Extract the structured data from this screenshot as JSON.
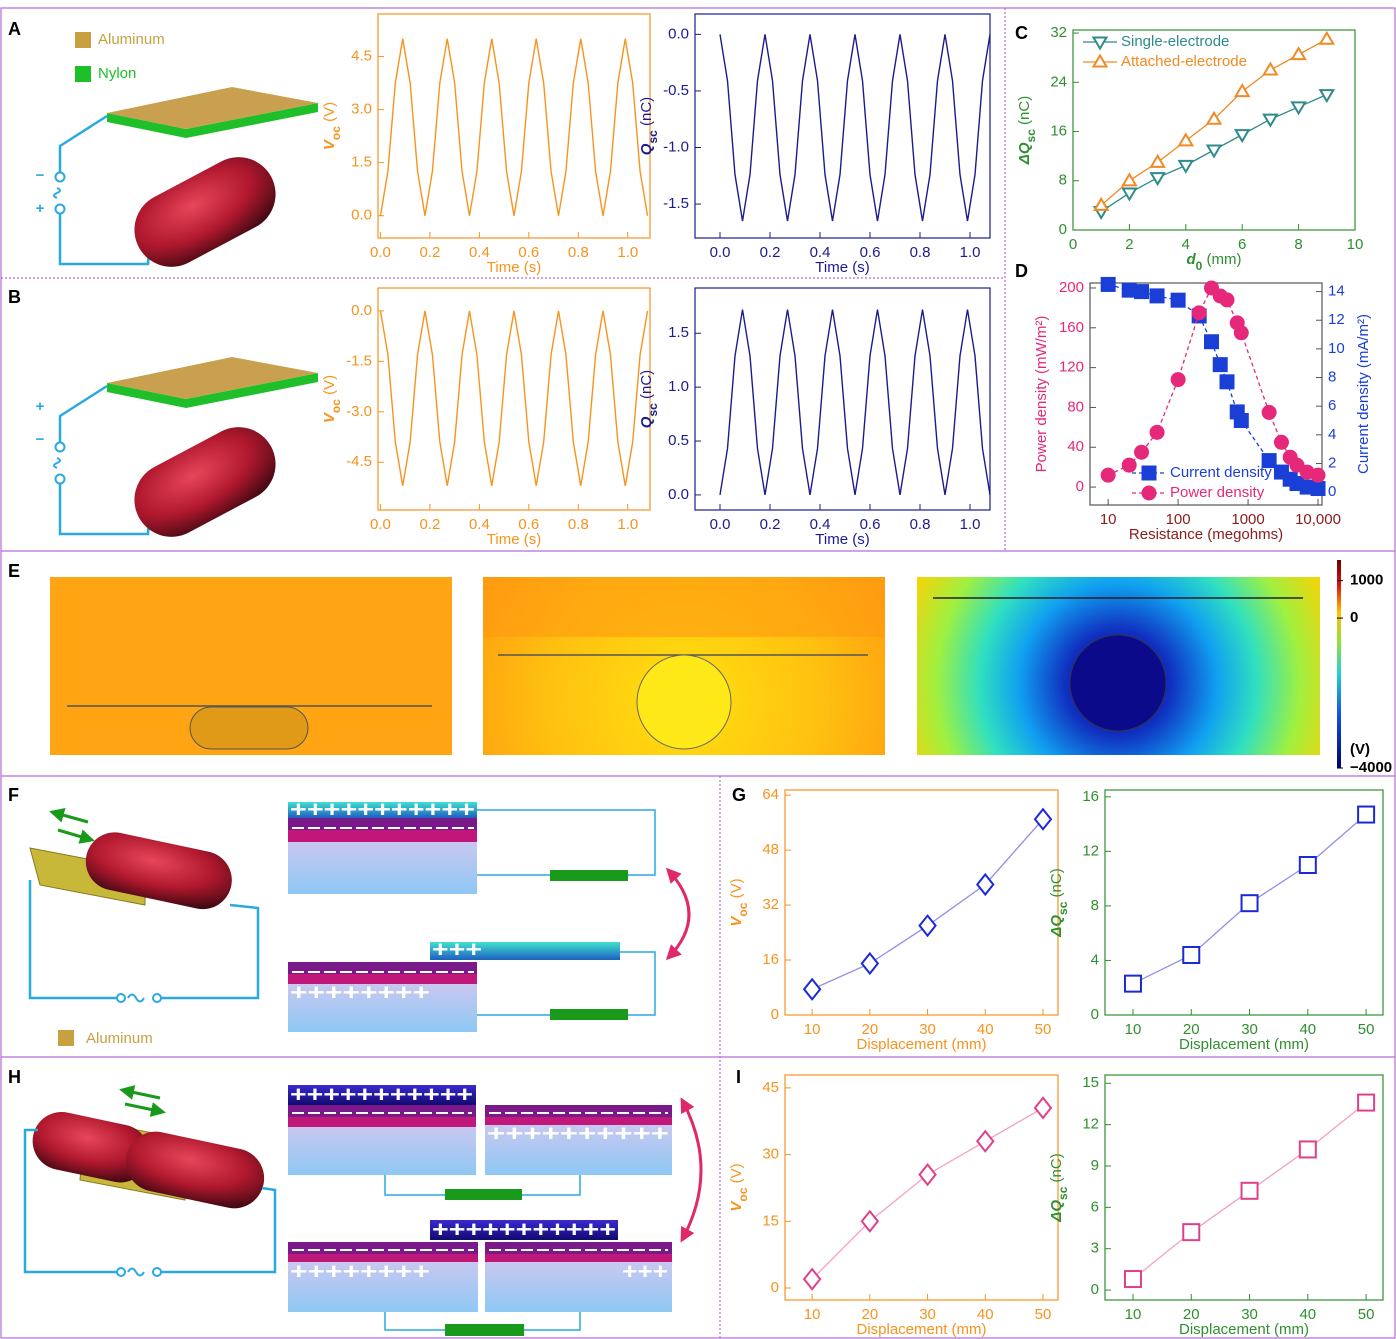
{
  "panels": [
    "A",
    "B",
    "C",
    "D",
    "E",
    "F",
    "G",
    "H",
    "I"
  ],
  "legend_A": [
    "Aluminum",
    "Nylon"
  ],
  "signs_A": [
    "−",
    "+"
  ],
  "signs_B": [
    "+",
    "−"
  ],
  "legend_F": "Aluminum",
  "charges_F": [
    "+++++++++++",
    "+++",
    "++++++++"
  ],
  "charges_H": [
    "+++++++++++",
    "++++++++++",
    "+++++++++++",
    "++++++++",
    "+++"
  ],
  "colorbar": {
    "lim": [
      -4000,
      1550
    ],
    "ticks": [
      1000,
      0,
      {
        "value": -4000,
        "label": "−4000"
      }
    ],
    "unit": "(V)"
  },
  "chart_data": [
    {
      "type": "line",
      "x": [
        0,
        0.03,
        0.06,
        0.09,
        0.12,
        0.15,
        0.18,
        0.21,
        0.24,
        0.27,
        0.3,
        0.33,
        0.36,
        0.39,
        0.42,
        0.45,
        0.48,
        0.51,
        0.54,
        0.57,
        0.6,
        0.63,
        0.66,
        0.69,
        0.72,
        0.75,
        0.78,
        0.81,
        0.84,
        0.87,
        0.9,
        0.93,
        0.96,
        0.99,
        1.02,
        1.05,
        1.08
      ],
      "series": [
        {
          "color": "#f7931e",
          "values": [
            0,
            1.25,
            3.75,
            5,
            3.75,
            1.25,
            0,
            1.25,
            3.75,
            5,
            3.75,
            1.25,
            0,
            1.25,
            3.75,
            5,
            3.75,
            1.25,
            0,
            1.25,
            3.75,
            5,
            3.75,
            1.25,
            0,
            1.25,
            3.75,
            5,
            3.75,
            1.25,
            0,
            1.25,
            3.75,
            5,
            3.75,
            1.25,
            0
          ]
        }
      ],
      "xlim": [
        -0.01,
        1.09
      ],
      "xticks": [
        {
          "value": 0,
          "label": "0.0"
        },
        0.2,
        0.4,
        0.6,
        0.8,
        {
          "value": 1,
          "label": "1.0"
        }
      ],
      "ylim": [
        -0.63,
        5.7
      ],
      "yticks": [
        {
          "value": 0,
          "label": "0.0"
        },
        1.5,
        {
          "value": 3,
          "label": "3.0"
        },
        4.5
      ],
      "xlabel": "Time (s)",
      "ylabel": {
        "text": "V",
        "sub": "oc",
        "unit": " (V)"
      },
      "frame_color": "#f7931e"
    },
    {
      "type": "line",
      "x": [
        0,
        0.03,
        0.06,
        0.09,
        0.12,
        0.15,
        0.18,
        0.21,
        0.24,
        0.27,
        0.3,
        0.33,
        0.36,
        0.39,
        0.42,
        0.45,
        0.48,
        0.51,
        0.54,
        0.57,
        0.6,
        0.63,
        0.66,
        0.69,
        0.72,
        0.75,
        0.78,
        0.81,
        0.84,
        0.87,
        0.9,
        0.93,
        0.96,
        0.99,
        1.02,
        1.05,
        1.08
      ],
      "series": [
        {
          "color": "#1b1b8f",
          "values": [
            0,
            -0.41,
            -1.24,
            -1.65,
            -1.24,
            -0.41,
            0,
            -0.41,
            -1.24,
            -1.65,
            -1.24,
            -0.41,
            0,
            -0.41,
            -1.24,
            -1.65,
            -1.24,
            -0.41,
            0,
            -0.41,
            -1.24,
            -1.65,
            -1.24,
            -0.41,
            0,
            -0.41,
            -1.24,
            -1.65,
            -1.24,
            -0.41,
            0,
            -0.41,
            -1.24,
            -1.65,
            -1.24,
            -0.41,
            0
          ]
        }
      ],
      "xlim": [
        -0.1,
        1.08
      ],
      "xticks": [
        {
          "value": 0,
          "label": "0.0"
        },
        0.2,
        0.4,
        0.6,
        0.8,
        {
          "value": 1,
          "label": "1.0"
        }
      ],
      "ylim": [
        -1.8,
        0.18
      ],
      "yticks": [
        {
          "value": 0,
          "label": "0.0"
        },
        -0.5,
        {
          "value": -1,
          "label": "-1.0"
        },
        -1.5
      ],
      "xlabel": "Time (s)",
      "ylabel": {
        "text": "Q",
        "sub": "sc",
        "unit": " (nC)"
      },
      "frame_color": "#1b1b8f"
    },
    {
      "type": "line",
      "x": [
        0,
        0.03,
        0.06,
        0.09,
        0.12,
        0.15,
        0.18,
        0.21,
        0.24,
        0.27,
        0.3,
        0.33,
        0.36,
        0.39,
        0.42,
        0.45,
        0.48,
        0.51,
        0.54,
        0.57,
        0.6,
        0.63,
        0.66,
        0.69,
        0.72,
        0.75,
        0.78,
        0.81,
        0.84,
        0.87,
        0.9,
        0.93,
        0.96,
        0.99,
        1.02,
        1.05,
        1.08
      ],
      "series": [
        {
          "color": "#f7931e",
          "values": [
            0,
            -1.3,
            -3.9,
            -5.2,
            -3.9,
            -1.3,
            0,
            -1.3,
            -3.9,
            -5.2,
            -3.9,
            -1.3,
            0,
            -1.3,
            -3.9,
            -5.2,
            -3.9,
            -1.3,
            0,
            -1.3,
            -3.9,
            -5.2,
            -3.9,
            -1.3,
            0,
            -1.3,
            -3.9,
            -5.2,
            -3.9,
            -1.3,
            0,
            -1.3,
            -3.9,
            -5.2,
            -3.9,
            -1.3,
            0
          ]
        }
      ],
      "xlim": [
        -0.01,
        1.09
      ],
      "xticks": [
        {
          "value": 0,
          "label": "0.0"
        },
        0.2,
        0.4,
        0.6,
        0.8,
        {
          "value": 1,
          "label": "1.0"
        }
      ],
      "ylim": [
        -5.92,
        0.68
      ],
      "yticks": [
        {
          "value": 0,
          "label": "0.0"
        },
        -1.5,
        {
          "value": -3,
          "label": "-3.0"
        },
        -4.5
      ],
      "xlabel": "Time (s)",
      "ylabel": {
        "text": "V",
        "sub": "oc",
        "unit": " (V)"
      },
      "frame_color": "#f7931e"
    },
    {
      "type": "line",
      "x": [
        0,
        0.03,
        0.06,
        0.09,
        0.12,
        0.15,
        0.18,
        0.21,
        0.24,
        0.27,
        0.3,
        0.33,
        0.36,
        0.39,
        0.42,
        0.45,
        0.48,
        0.51,
        0.54,
        0.57,
        0.6,
        0.63,
        0.66,
        0.69,
        0.72,
        0.75,
        0.78,
        0.81,
        0.84,
        0.87,
        0.9,
        0.93,
        0.96,
        0.99,
        1.02,
        1.05,
        1.08
      ],
      "series": [
        {
          "color": "#1b1b8f",
          "values": [
            0,
            0.43,
            1.29,
            1.72,
            1.29,
            0.43,
            0,
            0.43,
            1.29,
            1.72,
            1.29,
            0.43,
            0,
            0.43,
            1.29,
            1.72,
            1.29,
            0.43,
            0,
            0.43,
            1.29,
            1.72,
            1.29,
            0.43,
            0,
            0.43,
            1.29,
            1.72,
            1.29,
            0.43,
            0,
            0.43,
            1.29,
            1.72,
            1.29,
            0.43,
            0
          ]
        }
      ],
      "xlim": [
        -0.1,
        1.08
      ],
      "xticks": [
        {
          "value": 0,
          "label": "0.0"
        },
        0.2,
        0.4,
        0.6,
        0.8,
        {
          "value": 1,
          "label": "1.0"
        }
      ],
      "ylim": [
        -0.14,
        1.92
      ],
      "yticks": [
        {
          "value": 0,
          "label": "0.0"
        },
        0.5,
        {
          "value": 1,
          "label": "1.0"
        },
        1.5
      ],
      "xlabel": "Time (s)",
      "ylabel": {
        "text": "Q",
        "sub": "sc",
        "unit": " (nC)"
      },
      "frame_color": "#1b1b8f"
    },
    {
      "type": "line",
      "x": [
        1,
        2,
        3,
        4,
        5,
        6,
        7,
        8,
        9
      ],
      "series": [
        {
          "name": "Single-electrode",
          "color": "#2e8b8b",
          "marker": "triangle-down",
          "values": [
            3,
            6,
            8.5,
            10.5,
            13,
            15.5,
            18,
            20,
            22
          ]
        },
        {
          "name": "Attached-electrode",
          "color": "#f08a24",
          "marker": "triangle-up",
          "values": [
            4,
            8,
            11,
            14.5,
            18,
            22.5,
            26,
            28.5,
            31
          ]
        }
      ],
      "xlim": [
        0,
        10
      ],
      "xticks": [
        0,
        2,
        4,
        6,
        8,
        10
      ],
      "ylim": [
        0,
        32.5
      ],
      "yticks": [
        0,
        8,
        16,
        24,
        32
      ],
      "xlabel": {
        "text": "d",
        "sub": "0",
        "unit": " (mm)"
      },
      "ylabel": {
        "text": "ΔQ",
        "sub": "sc",
        "unit": " (nC)"
      },
      "legend": "upper left",
      "frame_color": "#2f8f2f"
    },
    {
      "type": "line",
      "xscale": "log",
      "x": [
        10,
        20,
        30,
        50,
        100,
        200,
        300,
        400,
        500,
        700,
        800,
        2000,
        3000,
        4000,
        5000,
        7000,
        10000
      ],
      "series": [
        {
          "name": "Current density",
          "color": "#1a3fd6",
          "marker": "square",
          "filled": true,
          "dash": true,
          "axis": "y2",
          "values": [
            14.5,
            14.1,
            14,
            13.7,
            13.4,
            12.3,
            10.5,
            8.9,
            7.7,
            5.6,
            5,
            2.2,
            1.4,
            0.9,
            0.6,
            0.35,
            0.25
          ]
        },
        {
          "name": "Power density",
          "color": "#e6287a",
          "marker": "circle",
          "filled": true,
          "dash": true,
          "values": [
            12,
            22,
            35,
            55,
            108,
            175,
            200,
            192,
            188,
            165,
            155,
            75,
            45,
            30,
            22,
            15,
            12
          ]
        }
      ],
      "xlim": [
        5.5,
        11400
      ],
      "xticks": [
        10,
        100,
        1000,
        {
          "value": 10000,
          "label": "10,000"
        }
      ],
      "ylim": [
        -18,
        205
      ],
      "yticks": [
        0,
        40,
        80,
        120,
        160,
        200
      ],
      "y2lim": [
        -0.9,
        14.6
      ],
      "y2ticks": [
        0,
        2,
        4,
        6,
        8,
        10,
        12,
        14
      ],
      "xlabel": "Resistance (megohms)",
      "ylabel": "Power density (mW/m²)",
      "y2label": "Current density (mA/m²)",
      "legend": "lower right",
      "frame_color": "#555555",
      "x_color": "#8b1a1a",
      "y_color": "#e6287a",
      "y2_color": "#1a3fd6"
    },
    {
      "type": "line",
      "x": [
        10,
        20,
        30,
        40,
        50
      ],
      "series": [
        {
          "color": "#1a2ad6",
          "line_color": "#8f8fe8",
          "marker": "diamond",
          "values": [
            7.5,
            15,
            26,
            38,
            57
          ]
        }
      ],
      "xlim": [
        5.3,
        52.6
      ],
      "xticks": [
        10,
        20,
        30,
        40,
        50
      ],
      "ylim": [
        0,
        65.5
      ],
      "yticks": [
        0,
        16,
        32,
        48,
        64
      ],
      "xlabel": "Displacement (mm)",
      "ylabel": {
        "text": "V",
        "sub": "oc",
        "unit": " (V)"
      },
      "frame_color": "#f7931e"
    },
    {
      "type": "line",
      "x": [
        10,
        20,
        30,
        40,
        50
      ],
      "series": [
        {
          "color": "#1a2ad6",
          "line_color": "#8f8fe8",
          "marker": "square",
          "values": [
            2.3,
            4.4,
            8.2,
            11,
            14.7
          ]
        }
      ],
      "xlim": [
        5.2,
        52.9
      ],
      "xticks": [
        10,
        20,
        30,
        40,
        50
      ],
      "ylim": [
        0,
        16.5
      ],
      "yticks": [
        0,
        4,
        8,
        12,
        16
      ],
      "xlabel": "Displacement (mm)",
      "ylabel": {
        "text": "ΔQ",
        "sub": "sc",
        "unit": " (nC)"
      },
      "frame_color": "#2f8f2f"
    },
    {
      "type": "line",
      "x": [
        10,
        20,
        30,
        40,
        50
      ],
      "series": [
        {
          "color": "#e0408a",
          "line_color": "#f4a0c4",
          "marker": "diamond",
          "values": [
            2,
            15,
            25.5,
            33,
            40.5
          ]
        }
      ],
      "xlim": [
        5.3,
        52.6
      ],
      "xticks": [
        10,
        20,
        30,
        40,
        50
      ],
      "ylim": [
        -2.7,
        47.9
      ],
      "yticks": [
        0,
        15,
        30,
        45
      ],
      "xlabel": "Displacement (mm)",
      "ylabel": {
        "text": "V",
        "sub": "oc",
        "unit": " (V)"
      },
      "frame_color": "#f7931e"
    },
    {
      "type": "line",
      "x": [
        10,
        20,
        30,
        40,
        50
      ],
      "series": [
        {
          "color": "#e0408a",
          "line_color": "#f4a0c4",
          "marker": "square",
          "values": [
            0.8,
            4.2,
            7.2,
            10.2,
            13.6
          ]
        }
      ],
      "xlim": [
        5.2,
        52.9
      ],
      "xticks": [
        10,
        20,
        30,
        40,
        50
      ],
      "ylim": [
        -0.72,
        15.6
      ],
      "yticks": [
        0,
        3,
        6,
        9,
        12,
        15
      ],
      "xlabel": "Displacement (mm)",
      "ylabel": {
        "text": "ΔQ",
        "sub": "sc",
        "unit": " (nC)"
      },
      "frame_color": "#2f8f2f"
    }
  ]
}
